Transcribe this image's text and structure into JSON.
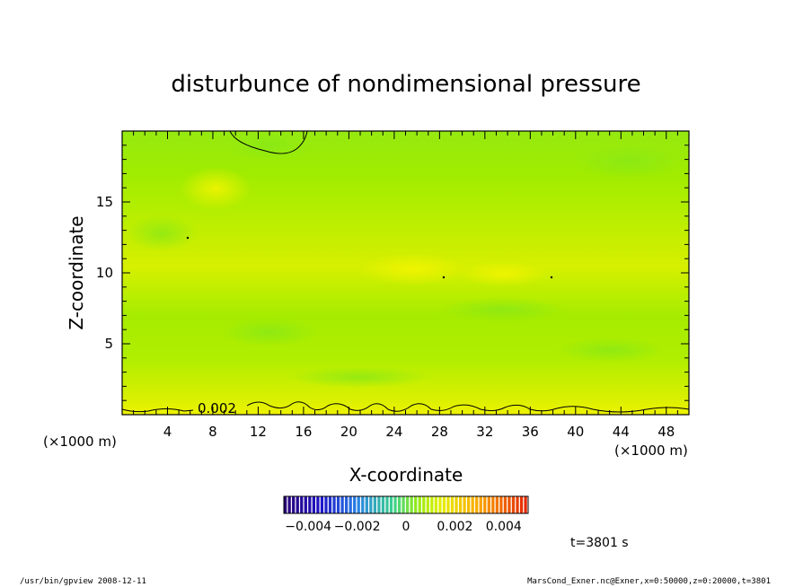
{
  "chart_data": {
    "type": "heatmap",
    "title": "disturbunce of nondimensional pressure",
    "xlabel": "X-coordinate",
    "ylabel": "Z-coordinate",
    "x_unit": "(×1000 m)",
    "y_unit": "(×1000 m)",
    "xlim": [
      0,
      50
    ],
    "ylim": [
      0,
      20
    ],
    "x_ticks": [
      4,
      8,
      12,
      16,
      20,
      24,
      28,
      32,
      36,
      40,
      44,
      48
    ],
    "y_ticks": [
      5,
      10,
      15
    ],
    "colorbar": {
      "ticks": [
        "−0.004",
        "−0.002",
        "0",
        "0.002",
        "0.004"
      ],
      "tick_values": [
        -0.004,
        -0.002,
        0,
        0.002,
        0.004
      ],
      "range": [
        -0.005,
        0.005
      ]
    },
    "contour_labels": [
      "0.002"
    ],
    "time_label": "t=3801 s",
    "field_bands": [
      {
        "z_from": 0,
        "z_to": 1,
        "value": 0.0026
      },
      {
        "z_from": 1,
        "z_to": 4,
        "value": 0.0021
      },
      {
        "z_from": 4,
        "z_to": 7,
        "value": 0.0018
      },
      {
        "z_from": 7,
        "z_to": 12,
        "value": 0.0023
      },
      {
        "z_from": 12,
        "z_to": 15,
        "value": 0.0019
      },
      {
        "z_from": 15,
        "z_to": 20,
        "value": 0.0015
      }
    ]
  },
  "footer": {
    "left": "/usr/bin/gpview   2008-12-11",
    "right": "MarsCond_Exner.nc@Exner,x=0:50000,z=0:20000,t=3801"
  }
}
